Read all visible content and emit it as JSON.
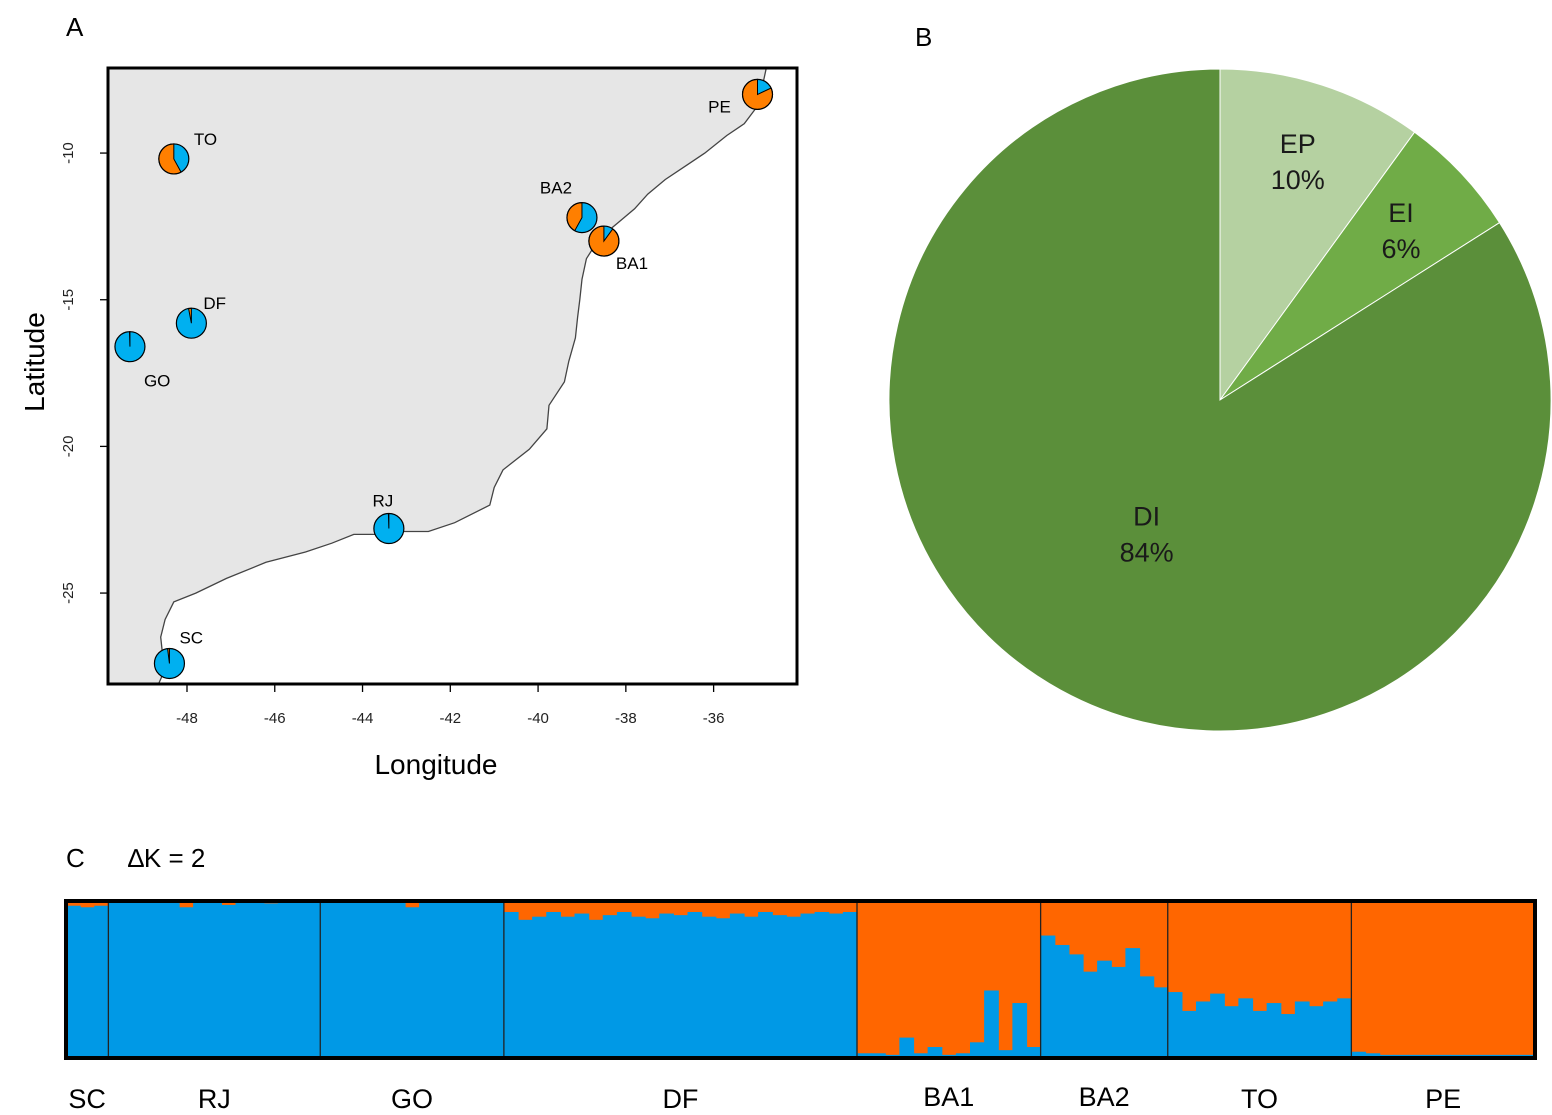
{
  "colors": {
    "orange": "#ff6600",
    "blue": "#0099e6",
    "pie_blue": "#00b0f0",
    "pie_orange": "#ff7f00",
    "land": "#e6e6e6",
    "dark_green": "#5b8f3a",
    "mid_green": "#70ac47",
    "light_green": "#b5d1a1"
  },
  "panels": {
    "a": "A",
    "b": "B",
    "c": "C",
    "c_title": "∆K = 2"
  },
  "chart_data": [
    {
      "type": "scatter",
      "panel": "A",
      "subtype": "map with pie markers",
      "xlabel": "Longitude",
      "ylabel": "Latitude",
      "xlim": [
        -49.8,
        -34.1
      ],
      "ylim": [
        -28.1,
        -7.1
      ],
      "xticks": [
        -48,
        -46,
        -44,
        -42,
        -40,
        -38,
        -36
      ],
      "yticks": [
        -10,
        -15,
        -20,
        -25
      ],
      "xtick_labels": [
        "-48",
        "-46",
        "-44",
        "-42",
        "-40",
        "-38",
        "-36"
      ],
      "ytick_labels": [
        "-10",
        "-15",
        "-20",
        "-25"
      ],
      "grid": false,
      "sites": [
        {
          "name": "TO",
          "lon": -48.3,
          "lat": -10.2,
          "orange": 0.58,
          "blue": 0.42
        },
        {
          "name": "BA2",
          "lon": -39.0,
          "lat": -12.2,
          "orange": 0.42,
          "blue": 0.58
        },
        {
          "name": "BA1",
          "lon": -38.5,
          "lat": -13.0,
          "orange": 0.9,
          "blue": 0.1
        },
        {
          "name": "PE",
          "lon": -35.0,
          "lat": -8.0,
          "orange": 0.82,
          "blue": 0.18
        },
        {
          "name": "DF",
          "lon": -47.9,
          "lat": -15.8,
          "orange": 0.03,
          "blue": 0.97
        },
        {
          "name": "GO",
          "lon": -49.3,
          "lat": -16.6,
          "orange": 0.005,
          "blue": 0.995
        },
        {
          "name": "RJ",
          "lon": -43.4,
          "lat": -22.8,
          "orange": 0.005,
          "blue": 0.995
        },
        {
          "name": "SC",
          "lon": -48.4,
          "lat": -27.4,
          "orange": 0.02,
          "blue": 0.98
        }
      ],
      "coastline": [
        [
          -34.8,
          -7.1
        ],
        [
          -34.9,
          -7.8
        ],
        [
          -35.0,
          -8.4
        ],
        [
          -35.3,
          -9.0
        ],
        [
          -35.7,
          -9.4
        ],
        [
          -36.2,
          -10.0
        ],
        [
          -36.6,
          -10.4
        ],
        [
          -37.1,
          -10.9
        ],
        [
          -37.5,
          -11.4
        ],
        [
          -37.8,
          -11.9
        ],
        [
          -38.2,
          -12.4
        ],
        [
          -38.6,
          -12.9
        ],
        [
          -38.9,
          -13.6
        ],
        [
          -39.0,
          -14.3
        ],
        [
          -39.05,
          -15.0
        ],
        [
          -39.1,
          -15.6
        ],
        [
          -39.15,
          -16.3
        ],
        [
          -39.3,
          -17.1
        ],
        [
          -39.4,
          -17.8
        ],
        [
          -39.75,
          -18.6
        ],
        [
          -39.8,
          -19.4
        ],
        [
          -40.2,
          -20.1
        ],
        [
          -40.8,
          -20.8
        ],
        [
          -41.0,
          -21.4
        ],
        [
          -41.1,
          -22.0
        ],
        [
          -41.9,
          -22.6
        ],
        [
          -42.5,
          -22.9
        ],
        [
          -43.1,
          -22.9
        ],
        [
          -43.7,
          -23.0
        ],
        [
          -44.2,
          -23.0
        ],
        [
          -44.7,
          -23.3
        ],
        [
          -45.3,
          -23.6
        ],
        [
          -46.2,
          -23.95
        ],
        [
          -47.1,
          -24.5
        ],
        [
          -47.8,
          -25.0
        ],
        [
          -48.3,
          -25.3
        ],
        [
          -48.5,
          -25.9
        ],
        [
          -48.6,
          -26.5
        ],
        [
          -48.55,
          -27.2
        ],
        [
          -48.5,
          -27.6
        ],
        [
          -48.65,
          -28.1
        ]
      ]
    },
    {
      "type": "pie",
      "panel": "B",
      "slices": [
        {
          "label": "EP",
          "value": 10,
          "value_label": "10%",
          "color": "#b5d1a1"
        },
        {
          "label": "EI",
          "value": 6,
          "value_label": "6%",
          "color": "#70ac47"
        },
        {
          "label": "DI",
          "value": 84,
          "value_label": "84%",
          "color": "#5b8f3a"
        }
      ]
    },
    {
      "type": "bar",
      "panel": "C",
      "subtype": "stacked 100% admixture (STRUCTURE K=2)",
      "title": "∆K = 2",
      "ylim": [
        0,
        1
      ],
      "series": [
        {
          "name": "",
          "color": "#ff6600"
        },
        {
          "name": "",
          "color": "#0099e6"
        }
      ],
      "groups": [
        {
          "name": "SC",
          "n": 3,
          "blue": [
            0.97,
            0.96,
            0.97
          ]
        },
        {
          "name": "RJ",
          "n": 15,
          "blue": [
            0.995,
            0.995,
            0.99,
            0.995,
            0.995,
            0.96,
            0.99,
            0.995,
            0.975,
            0.99,
            0.99,
            0.985,
            0.99,
            0.995,
            0.99
          ]
        },
        {
          "name": "GO",
          "n": 13,
          "blue": [
            0.995,
            0.995,
            0.995,
            0.995,
            0.995,
            0.99,
            0.96,
            0.995,
            0.995,
            0.995,
            0.995,
            0.995,
            0.995
          ]
        },
        {
          "name": "DF",
          "n": 25,
          "blue": [
            0.93,
            0.88,
            0.9,
            0.93,
            0.9,
            0.92,
            0.88,
            0.91,
            0.93,
            0.9,
            0.89,
            0.92,
            0.91,
            0.93,
            0.9,
            0.89,
            0.92,
            0.9,
            0.93,
            0.91,
            0.9,
            0.92,
            0.93,
            0.92,
            0.93
          ]
        },
        {
          "name": "BA1",
          "n": 13,
          "blue": [
            0.03,
            0.03,
            0.02,
            0.13,
            0.03,
            0.07,
            0.02,
            0.03,
            0.1,
            0.43,
            0.05,
            0.35,
            0.07
          ]
        },
        {
          "name": "BA2",
          "n": 9,
          "blue": [
            0.78,
            0.72,
            0.66,
            0.55,
            0.62,
            0.58,
            0.7,
            0.52,
            0.45
          ]
        },
        {
          "name": "TO",
          "n": 13,
          "blue": [
            0.42,
            0.3,
            0.36,
            0.41,
            0.33,
            0.38,
            0.3,
            0.35,
            0.28,
            0.36,
            0.33,
            0.36,
            0.38
          ]
        },
        {
          "name": "PE",
          "n": 13,
          "blue": [
            0.04,
            0.03,
            0.02,
            0.02,
            0.02,
            0.02,
            0.02,
            0.02,
            0.02,
            0.02,
            0.02,
            0.02,
            0.02
          ]
        }
      ]
    }
  ]
}
